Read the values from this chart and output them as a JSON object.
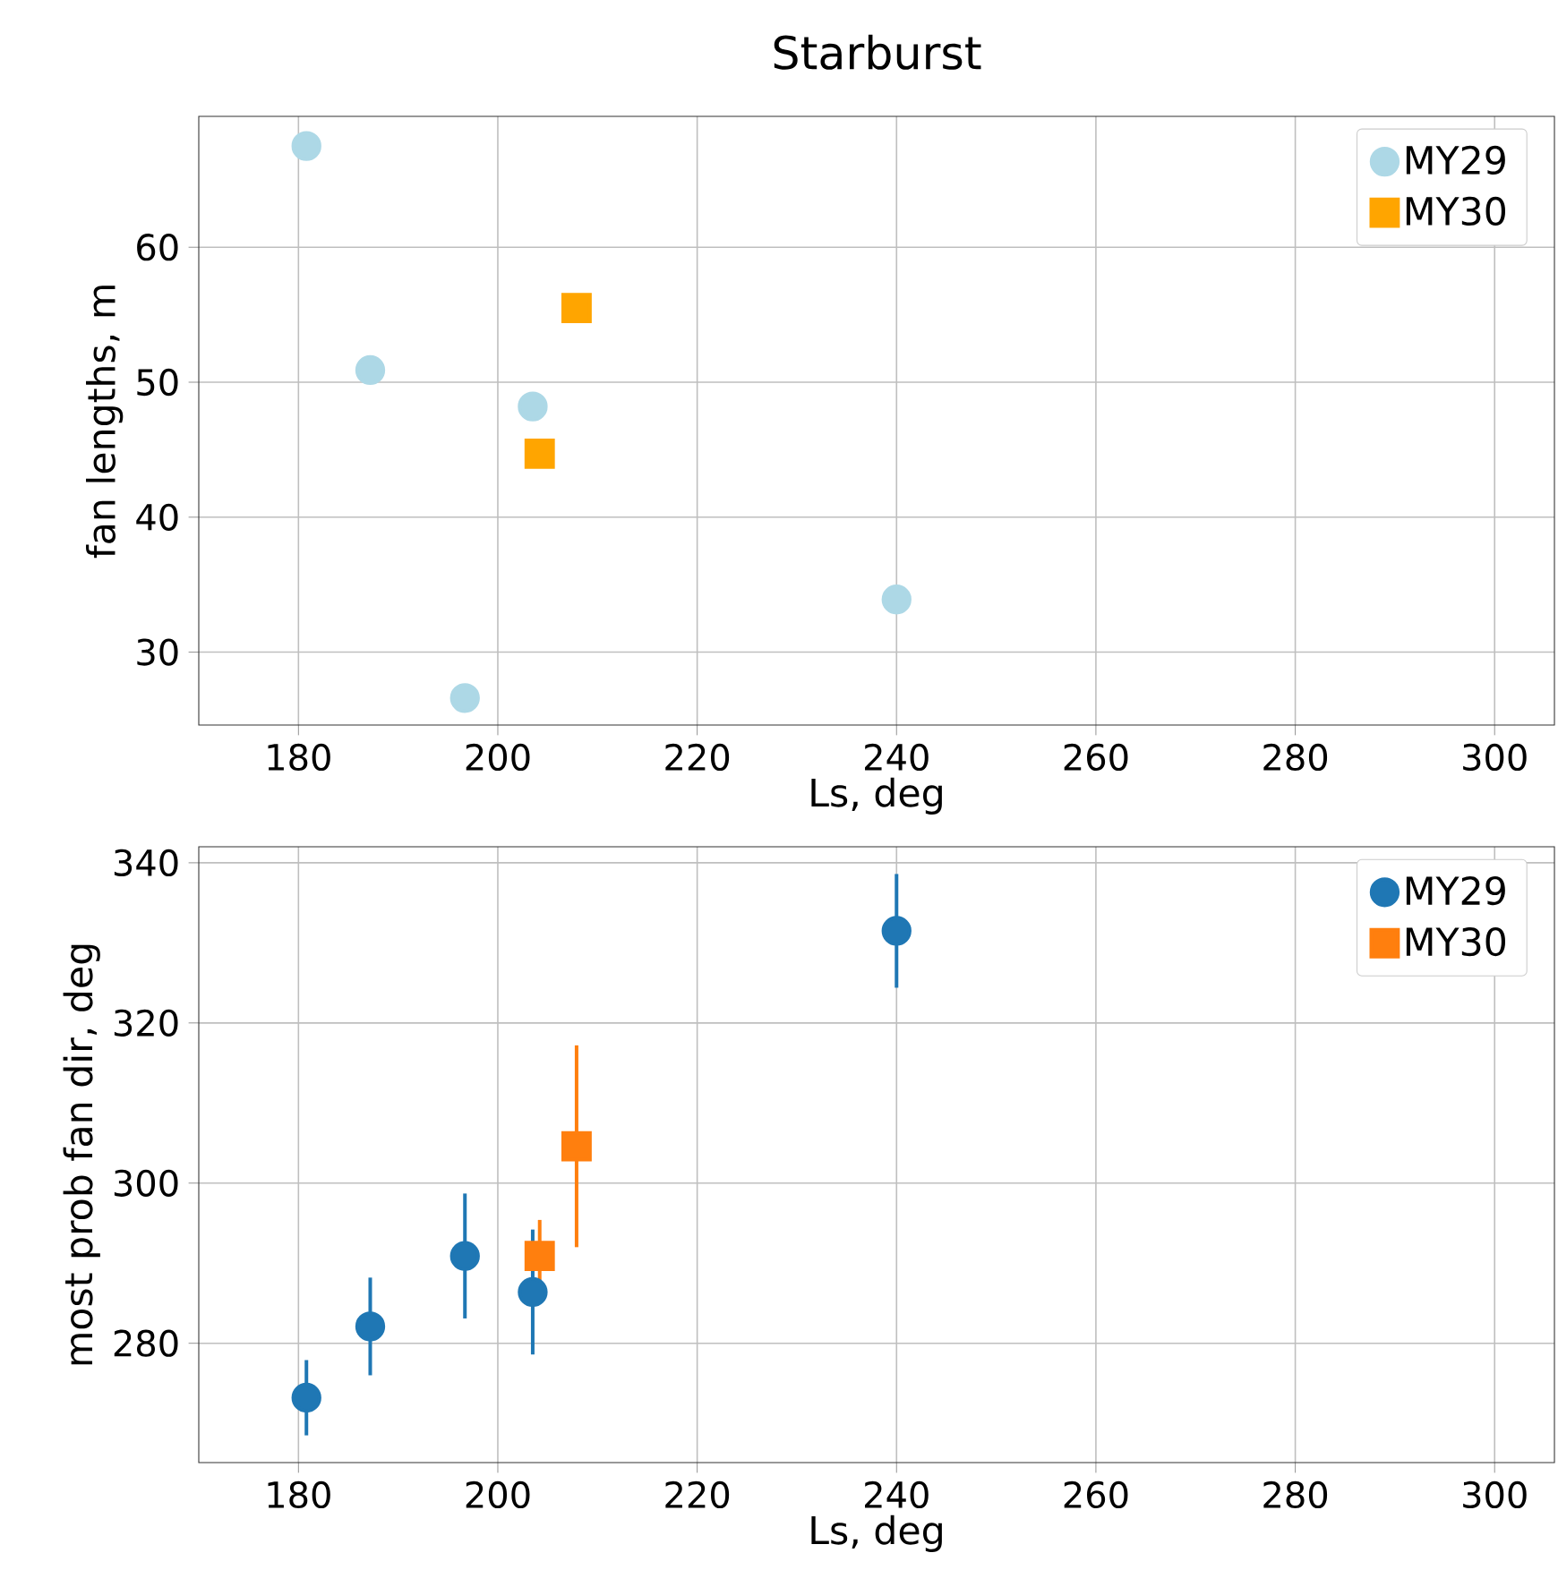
{
  "chart_data": [
    {
      "type": "scatter",
      "title": "Starburst",
      "xlabel": "Ls, deg",
      "ylabel": "fan lengths, m",
      "xlim": [
        170,
        306
      ],
      "ylim": [
        24.6,
        69.7
      ],
      "xticks": [
        180,
        200,
        220,
        240,
        260,
        280,
        300
      ],
      "yticks": [
        30,
        40,
        50,
        60
      ],
      "grid": true,
      "legend": "top right",
      "series": [
        {
          "name": "MY29",
          "color": "#add8e6",
          "marker": "circle",
          "x": [
            180.8,
            187.2,
            196.7,
            203.5,
            240.0
          ],
          "values": [
            67.5,
            50.9,
            26.6,
            48.2,
            33.9
          ]
        },
        {
          "name": "MY30",
          "color": "#ffa500",
          "marker": "square",
          "x": [
            207.9,
            204.2
          ],
          "values": [
            55.5,
            44.7
          ]
        }
      ]
    },
    {
      "type": "scatter",
      "xlabel": "Ls, deg",
      "ylabel": "most prob fan dir, deg",
      "xlim": [
        170,
        306
      ],
      "ylim": [
        265.1,
        342
      ],
      "xticks": [
        180,
        200,
        220,
        240,
        260,
        280,
        300
      ],
      "yticks": [
        280,
        300,
        320,
        340
      ],
      "grid": true,
      "legend": "top right",
      "series": [
        {
          "name": "MY29",
          "color": "#1f77b4",
          "marker": "circle",
          "x": [
            180.8,
            187.2,
            196.7,
            203.5,
            240.0
          ],
          "values": [
            273.2,
            282.1,
            290.9,
            286.4,
            331.5
          ],
          "errors": [
            4.7,
            6.1,
            7.8,
            7.8,
            7.1
          ]
        },
        {
          "name": "MY30",
          "color": "#ff7f0e",
          "marker": "square",
          "x": [
            204.2,
            207.9
          ],
          "values": [
            290.9,
            304.6
          ],
          "errors": [
            4.5,
            12.6
          ]
        }
      ]
    }
  ]
}
